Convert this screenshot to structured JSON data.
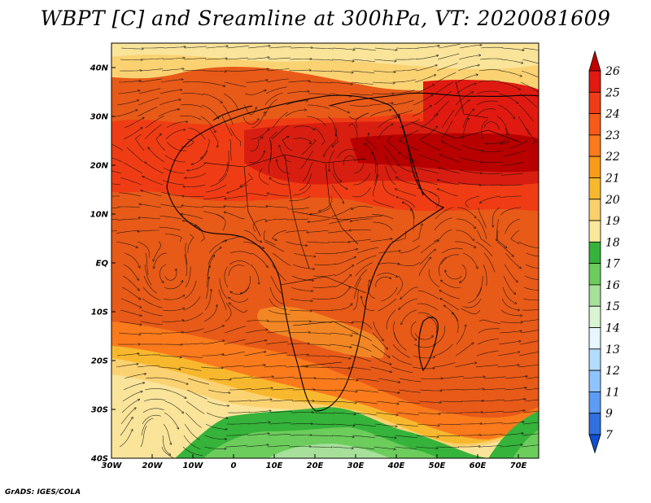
{
  "title": "WBPT [C] and Sreamline at 300hPa, VT: 2020081609",
  "footer": "GrADS: IGES/COLA",
  "map": {
    "lon_labels": [
      "30W",
      "20W",
      "10W",
      "0",
      "10E",
      "20E",
      "30E",
      "40E",
      "50E",
      "60E",
      "70E"
    ],
    "lat_labels": [
      "40N",
      "30N",
      "20N",
      "10N",
      "EQ",
      "10S",
      "20S",
      "30S",
      "40S"
    ],
    "lon_range": [
      -30,
      75
    ],
    "lat_range": [
      -40,
      45
    ]
  },
  "colorbar": {
    "labels": [
      "26",
      "25",
      "24",
      "23",
      "22",
      "21",
      "20",
      "19",
      "18",
      "17",
      "16",
      "15",
      "14",
      "13",
      "12",
      "11",
      "9",
      "7"
    ],
    "colors": [
      "#c00000",
      "#e01a10",
      "#f03c14",
      "#f85a18",
      "#fa7a1c",
      "#f89a1a",
      "#f8b82e",
      "#fbd06a",
      "#f9e89a",
      "#36b33a",
      "#6ccc5c",
      "#a6e09a",
      "#d9f4d2",
      "#e6f7ff",
      "#b4dcff",
      "#8ec4ff",
      "#5c9cf4",
      "#3070e0",
      "#1050d0"
    ]
  }
}
